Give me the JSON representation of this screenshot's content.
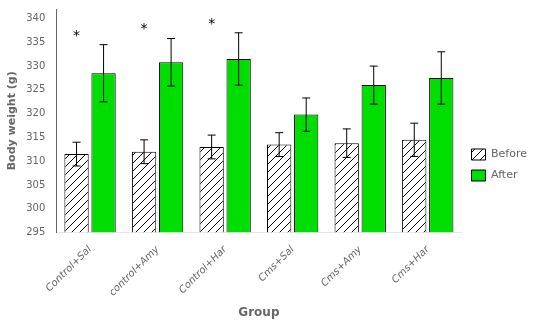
{
  "chart_data": {
    "type": "bar",
    "categories": [
      "Control+Sal",
      "control+Amy",
      "Control+Har",
      "Cms+Sal",
      "Cms+Amy",
      "Cms+Har"
    ],
    "series": [
      {
        "name": "Before",
        "color": "#ffffff",
        "values": [
          311.5,
          312.0,
          313.0,
          313.5,
          313.8,
          314.5
        ],
        "errors": [
          2.5,
          2.5,
          2.5,
          2.5,
          3.0,
          3.5
        ]
      },
      {
        "name": "After",
        "color": "#00dd00",
        "values": [
          328.5,
          330.8,
          331.5,
          319.8,
          326.0,
          327.5
        ],
        "errors": [
          6.0,
          5.0,
          5.5,
          3.5,
          4.0,
          5.5
        ]
      }
    ],
    "xlabel": "Group",
    "ylabel": "Body weight (g)",
    "ylim": [
      295,
      342
    ],
    "yticks": [
      295,
      300,
      305,
      310,
      315,
      320,
      325,
      330,
      335,
      340
    ],
    "grid": false,
    "legend": "right",
    "annotations": [
      {
        "text": "*",
        "category": "Control+Sal",
        "series": "Before",
        "y": 335.5
      },
      {
        "text": "*",
        "category": "control+Amy",
        "series": "Before",
        "y": 336.8
      },
      {
        "text": "*",
        "category": "Control+Har",
        "series": "Before",
        "y": 338.0
      }
    ]
  }
}
